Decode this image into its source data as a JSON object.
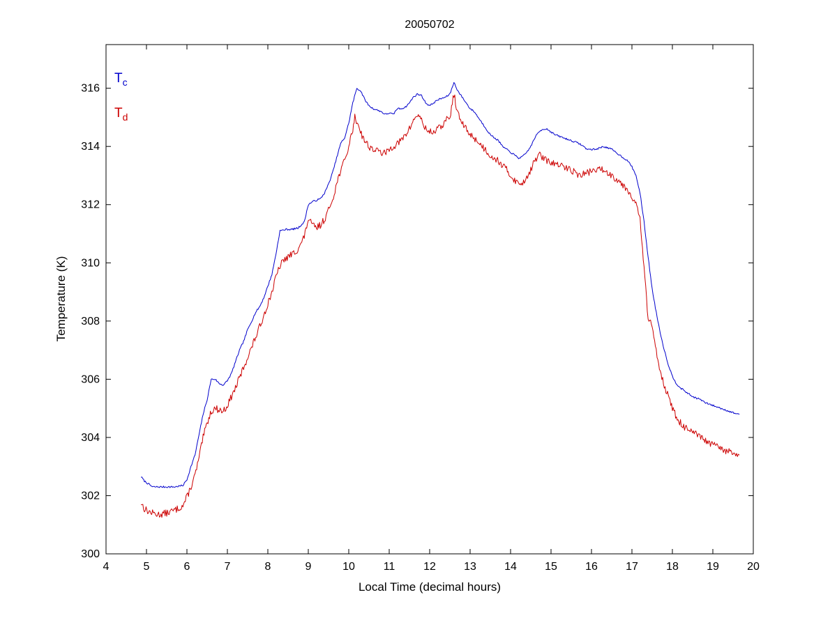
{
  "chart_data": {
    "type": "line",
    "title": "20050702",
    "xlabel": "Local Time (decimal hours)",
    "ylabel": "Temperature (K)",
    "xlim": [
      4,
      20
    ],
    "ylim": [
      300,
      317.5
    ],
    "xticks": [
      4,
      5,
      6,
      7,
      8,
      9,
      10,
      11,
      12,
      13,
      14,
      15,
      16,
      17,
      18,
      19,
      20
    ],
    "yticks": [
      300,
      302,
      304,
      306,
      308,
      310,
      312,
      314,
      316
    ],
    "grid": false,
    "legend": {
      "position": "top-left-inside",
      "entries": [
        {
          "base": "T",
          "sub": "c",
          "color": "#0000CC"
        },
        {
          "base": "T",
          "sub": "d",
          "color": "#CC0000"
        }
      ]
    },
    "series": [
      {
        "name": "Tc",
        "color": "#0000CC",
        "noise_amp": 0.03,
        "noise_seed": 7,
        "points": [
          [
            4.87,
            302.65
          ],
          [
            4.95,
            302.5
          ],
          [
            5.05,
            302.4
          ],
          [
            5.15,
            302.3
          ],
          [
            5.3,
            302.3
          ],
          [
            5.5,
            302.3
          ],
          [
            5.7,
            302.3
          ],
          [
            5.9,
            302.35
          ],
          [
            6.0,
            302.55
          ],
          [
            6.1,
            303.0
          ],
          [
            6.2,
            303.4
          ],
          [
            6.3,
            304.1
          ],
          [
            6.4,
            304.8
          ],
          [
            6.5,
            305.3
          ],
          [
            6.6,
            306.0
          ],
          [
            6.7,
            306.0
          ],
          [
            6.8,
            305.85
          ],
          [
            6.9,
            305.8
          ],
          [
            7.0,
            305.95
          ],
          [
            7.1,
            306.2
          ],
          [
            7.2,
            306.6
          ],
          [
            7.3,
            307.0
          ],
          [
            7.4,
            307.3
          ],
          [
            7.5,
            307.7
          ],
          [
            7.6,
            308.0
          ],
          [
            7.7,
            308.3
          ],
          [
            7.8,
            308.5
          ],
          [
            7.9,
            308.8
          ],
          [
            8.0,
            309.2
          ],
          [
            8.1,
            309.6
          ],
          [
            8.2,
            310.3
          ],
          [
            8.3,
            311.1
          ],
          [
            8.45,
            311.15
          ],
          [
            8.6,
            311.15
          ],
          [
            8.75,
            311.2
          ],
          [
            8.9,
            311.4
          ],
          [
            9.0,
            312.0
          ],
          [
            9.1,
            312.1
          ],
          [
            9.2,
            312.15
          ],
          [
            9.3,
            312.2
          ],
          [
            9.4,
            312.4
          ],
          [
            9.5,
            312.7
          ],
          [
            9.6,
            313.1
          ],
          [
            9.7,
            313.6
          ],
          [
            9.8,
            314.1
          ],
          [
            9.9,
            314.3
          ],
          [
            10.0,
            314.8
          ],
          [
            10.1,
            315.5
          ],
          [
            10.2,
            316.0
          ],
          [
            10.3,
            315.9
          ],
          [
            10.4,
            315.6
          ],
          [
            10.5,
            315.4
          ],
          [
            10.6,
            315.3
          ],
          [
            10.7,
            315.25
          ],
          [
            10.8,
            315.2
          ],
          [
            10.9,
            315.1
          ],
          [
            11.0,
            315.15
          ],
          [
            11.1,
            315.1
          ],
          [
            11.2,
            315.3
          ],
          [
            11.3,
            315.3
          ],
          [
            11.4,
            315.35
          ],
          [
            11.5,
            315.5
          ],
          [
            11.6,
            315.7
          ],
          [
            11.7,
            315.8
          ],
          [
            11.8,
            315.75
          ],
          [
            11.9,
            315.5
          ],
          [
            12.0,
            315.4
          ],
          [
            12.1,
            315.5
          ],
          [
            12.2,
            315.6
          ],
          [
            12.3,
            315.65
          ],
          [
            12.4,
            315.7
          ],
          [
            12.5,
            315.8
          ],
          [
            12.6,
            316.2
          ],
          [
            12.7,
            315.9
          ],
          [
            12.8,
            315.7
          ],
          [
            12.9,
            315.5
          ],
          [
            13.0,
            315.3
          ],
          [
            13.1,
            315.2
          ],
          [
            13.2,
            315.0
          ],
          [
            13.3,
            314.8
          ],
          [
            13.4,
            314.6
          ],
          [
            13.5,
            314.4
          ],
          [
            13.6,
            314.3
          ],
          [
            13.7,
            314.2
          ],
          [
            13.8,
            314.0
          ],
          [
            13.9,
            313.9
          ],
          [
            14.0,
            313.8
          ],
          [
            14.1,
            313.7
          ],
          [
            14.2,
            313.6
          ],
          [
            14.3,
            313.65
          ],
          [
            14.4,
            313.8
          ],
          [
            14.5,
            314.0
          ],
          [
            14.6,
            314.3
          ],
          [
            14.7,
            314.5
          ],
          [
            14.8,
            314.6
          ],
          [
            14.9,
            314.6
          ],
          [
            15.0,
            314.5
          ],
          [
            15.1,
            314.4
          ],
          [
            15.2,
            314.35
          ],
          [
            15.3,
            314.3
          ],
          [
            15.4,
            314.25
          ],
          [
            15.5,
            314.2
          ],
          [
            15.6,
            314.15
          ],
          [
            15.7,
            314.1
          ],
          [
            15.8,
            314.0
          ],
          [
            15.9,
            313.9
          ],
          [
            16.0,
            313.9
          ],
          [
            16.1,
            313.9
          ],
          [
            16.2,
            313.95
          ],
          [
            16.3,
            314.0
          ],
          [
            16.4,
            313.95
          ],
          [
            16.5,
            313.9
          ],
          [
            16.6,
            313.8
          ],
          [
            16.7,
            313.7
          ],
          [
            16.8,
            313.6
          ],
          [
            16.9,
            313.5
          ],
          [
            17.0,
            313.3
          ],
          [
            17.1,
            313.0
          ],
          [
            17.2,
            312.4
          ],
          [
            17.3,
            311.4
          ],
          [
            17.4,
            310.2
          ],
          [
            17.5,
            309.1
          ],
          [
            17.6,
            308.3
          ],
          [
            17.7,
            307.6
          ],
          [
            17.8,
            307.0
          ],
          [
            17.9,
            306.5
          ],
          [
            18.0,
            306.1
          ],
          [
            18.1,
            305.85
          ],
          [
            18.2,
            305.7
          ],
          [
            18.3,
            305.6
          ],
          [
            18.4,
            305.5
          ],
          [
            18.5,
            305.4
          ],
          [
            18.6,
            305.35
          ],
          [
            18.7,
            305.3
          ],
          [
            18.8,
            305.2
          ],
          [
            18.9,
            305.15
          ],
          [
            19.0,
            305.1
          ],
          [
            19.1,
            305.05
          ],
          [
            19.2,
            305.0
          ],
          [
            19.3,
            304.95
          ],
          [
            19.4,
            304.9
          ],
          [
            19.5,
            304.85
          ],
          [
            19.65,
            304.8
          ]
        ]
      },
      {
        "name": "Td",
        "color": "#CC0000",
        "noise_amp": 0.12,
        "noise_seed": 13,
        "points": [
          [
            4.87,
            301.75
          ],
          [
            4.95,
            301.55
          ],
          [
            5.05,
            301.45
          ],
          [
            5.15,
            301.4
          ],
          [
            5.3,
            301.35
          ],
          [
            5.5,
            301.4
          ],
          [
            5.7,
            301.5
          ],
          [
            5.9,
            301.65
          ],
          [
            6.0,
            301.95
          ],
          [
            6.1,
            302.3
          ],
          [
            6.2,
            302.7
          ],
          [
            6.3,
            303.3
          ],
          [
            6.4,
            304.0
          ],
          [
            6.5,
            304.5
          ],
          [
            6.6,
            304.9
          ],
          [
            6.7,
            305.0
          ],
          [
            6.8,
            304.95
          ],
          [
            6.9,
            304.9
          ],
          [
            7.0,
            305.1
          ],
          [
            7.1,
            305.4
          ],
          [
            7.2,
            305.7
          ],
          [
            7.3,
            306.05
          ],
          [
            7.4,
            306.4
          ],
          [
            7.5,
            306.75
          ],
          [
            7.6,
            307.1
          ],
          [
            7.7,
            307.45
          ],
          [
            7.8,
            307.8
          ],
          [
            7.9,
            308.2
          ],
          [
            8.0,
            308.6
          ],
          [
            8.1,
            309.0
          ],
          [
            8.2,
            309.5
          ],
          [
            8.3,
            309.9
          ],
          [
            8.4,
            310.1
          ],
          [
            8.5,
            310.2
          ],
          [
            8.6,
            310.3
          ],
          [
            8.7,
            310.4
          ],
          [
            8.8,
            310.6
          ],
          [
            8.9,
            310.9
          ],
          [
            9.0,
            311.5
          ],
          [
            9.1,
            311.3
          ],
          [
            9.2,
            311.2
          ],
          [
            9.3,
            311.3
          ],
          [
            9.4,
            311.5
          ],
          [
            9.5,
            311.8
          ],
          [
            9.6,
            312.2
          ],
          [
            9.7,
            312.7
          ],
          [
            9.8,
            313.2
          ],
          [
            9.9,
            313.5
          ],
          [
            10.0,
            314.0
          ],
          [
            10.1,
            314.6
          ],
          [
            10.15,
            315.0
          ],
          [
            10.25,
            314.7
          ],
          [
            10.35,
            314.3
          ],
          [
            10.5,
            314.0
          ],
          [
            10.6,
            313.9
          ],
          [
            10.7,
            313.85
          ],
          [
            10.8,
            313.8
          ],
          [
            10.9,
            313.75
          ],
          [
            11.0,
            313.9
          ],
          [
            11.1,
            314.0
          ],
          [
            11.2,
            314.1
          ],
          [
            11.3,
            314.2
          ],
          [
            11.4,
            314.4
          ],
          [
            11.5,
            314.6
          ],
          [
            11.6,
            314.9
          ],
          [
            11.7,
            315.1
          ],
          [
            11.8,
            314.9
          ],
          [
            11.9,
            314.6
          ],
          [
            12.0,
            314.5
          ],
          [
            12.1,
            314.5
          ],
          [
            12.2,
            314.6
          ],
          [
            12.3,
            314.7
          ],
          [
            12.4,
            314.9
          ],
          [
            12.5,
            315.0
          ],
          [
            12.6,
            315.8
          ],
          [
            12.7,
            315.1
          ],
          [
            12.8,
            314.8
          ],
          [
            12.9,
            314.6
          ],
          [
            13.0,
            314.4
          ],
          [
            13.1,
            314.3
          ],
          [
            13.2,
            314.15
          ],
          [
            13.3,
            314.0
          ],
          [
            13.4,
            313.85
          ],
          [
            13.5,
            313.7
          ],
          [
            13.6,
            313.6
          ],
          [
            13.7,
            313.5
          ],
          [
            13.8,
            313.35
          ],
          [
            13.9,
            313.2
          ],
          [
            14.0,
            313.0
          ],
          [
            14.1,
            312.85
          ],
          [
            14.2,
            312.7
          ],
          [
            14.3,
            312.75
          ],
          [
            14.4,
            312.95
          ],
          [
            14.5,
            313.2
          ],
          [
            14.6,
            313.5
          ],
          [
            14.7,
            313.75
          ],
          [
            14.8,
            313.6
          ],
          [
            14.9,
            313.5
          ],
          [
            15.0,
            313.45
          ],
          [
            15.1,
            313.4
          ],
          [
            15.2,
            313.35
          ],
          [
            15.3,
            313.3
          ],
          [
            15.4,
            313.25
          ],
          [
            15.5,
            313.2
          ],
          [
            15.6,
            313.1
          ],
          [
            15.7,
            313.0
          ],
          [
            15.8,
            313.05
          ],
          [
            15.9,
            313.1
          ],
          [
            16.0,
            313.15
          ],
          [
            16.1,
            313.2
          ],
          [
            16.2,
            313.2
          ],
          [
            16.3,
            313.2
          ],
          [
            16.4,
            313.1
          ],
          [
            16.5,
            313.0
          ],
          [
            16.6,
            312.9
          ],
          [
            16.7,
            312.8
          ],
          [
            16.8,
            312.65
          ],
          [
            16.9,
            312.5
          ],
          [
            17.0,
            312.3
          ],
          [
            17.1,
            312.0
          ],
          [
            17.2,
            311.5
          ],
          [
            17.3,
            309.8
          ],
          [
            17.4,
            308.1
          ],
          [
            17.5,
            307.8
          ],
          [
            17.6,
            307.0
          ],
          [
            17.7,
            306.3
          ],
          [
            17.8,
            305.8
          ],
          [
            17.9,
            305.4
          ],
          [
            18.0,
            305.0
          ],
          [
            18.1,
            304.7
          ],
          [
            18.2,
            304.5
          ],
          [
            18.3,
            304.35
          ],
          [
            18.4,
            304.25
          ],
          [
            18.5,
            304.15
          ],
          [
            18.6,
            304.1
          ],
          [
            18.7,
            304.0
          ],
          [
            18.8,
            303.9
          ],
          [
            18.9,
            303.8
          ],
          [
            19.0,
            303.75
          ],
          [
            19.1,
            303.7
          ],
          [
            19.2,
            303.6
          ],
          [
            19.3,
            303.55
          ],
          [
            19.4,
            303.5
          ],
          [
            19.5,
            303.45
          ],
          [
            19.65,
            303.4
          ]
        ]
      }
    ]
  }
}
